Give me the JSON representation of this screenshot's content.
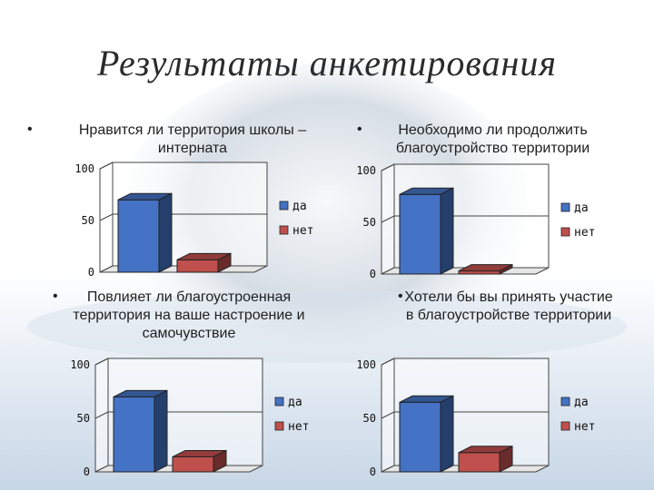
{
  "slide": {
    "title": "Результаты анкетирования",
    "bullet": "•"
  },
  "colors": {
    "da": "#4472C4",
    "net": "#C0504D",
    "background_blue": "#dfe8f2"
  },
  "chart_data": [
    {
      "type": "bar",
      "title": "Нравится ли территория школы – интерната",
      "categories": [
        "да",
        "нет"
      ],
      "values": [
        70,
        12
      ],
      "ylim": [
        0,
        100
      ],
      "yticks": [
        "0",
        "50",
        "100"
      ],
      "legend": [
        "да",
        "нет"
      ],
      "legend_position": "right",
      "grid": true
    },
    {
      "type": "bar",
      "title": "Необходимо ли продолжить благоустройство территории",
      "categories": [
        "да",
        "нет"
      ],
      "values": [
        77,
        3
      ],
      "ylim": [
        0,
        100
      ],
      "yticks": [
        "0",
        "50",
        "100"
      ],
      "legend": [
        "да",
        "нет"
      ],
      "legend_position": "right",
      "grid": true
    },
    {
      "type": "bar",
      "title": "Повлияет ли благоустроенная территория на ваше настроение и самочувствие",
      "categories": [
        "да",
        "нет"
      ],
      "values": [
        70,
        14
      ],
      "ylim": [
        0,
        100
      ],
      "yticks": [
        "0",
        "50",
        "100"
      ],
      "legend": [
        "да",
        "нет"
      ],
      "legend_position": "right",
      "grid": true
    },
    {
      "type": "bar",
      "title": "Хотели бы вы принять участие в благоустройстве территории",
      "categories": [
        "да",
        "нет"
      ],
      "values": [
        65,
        18
      ],
      "ylim": [
        0,
        100
      ],
      "yticks": [
        "0",
        "50",
        "100"
      ],
      "legend": [
        "да",
        "нет"
      ],
      "legend_position": "right",
      "grid": true
    }
  ]
}
